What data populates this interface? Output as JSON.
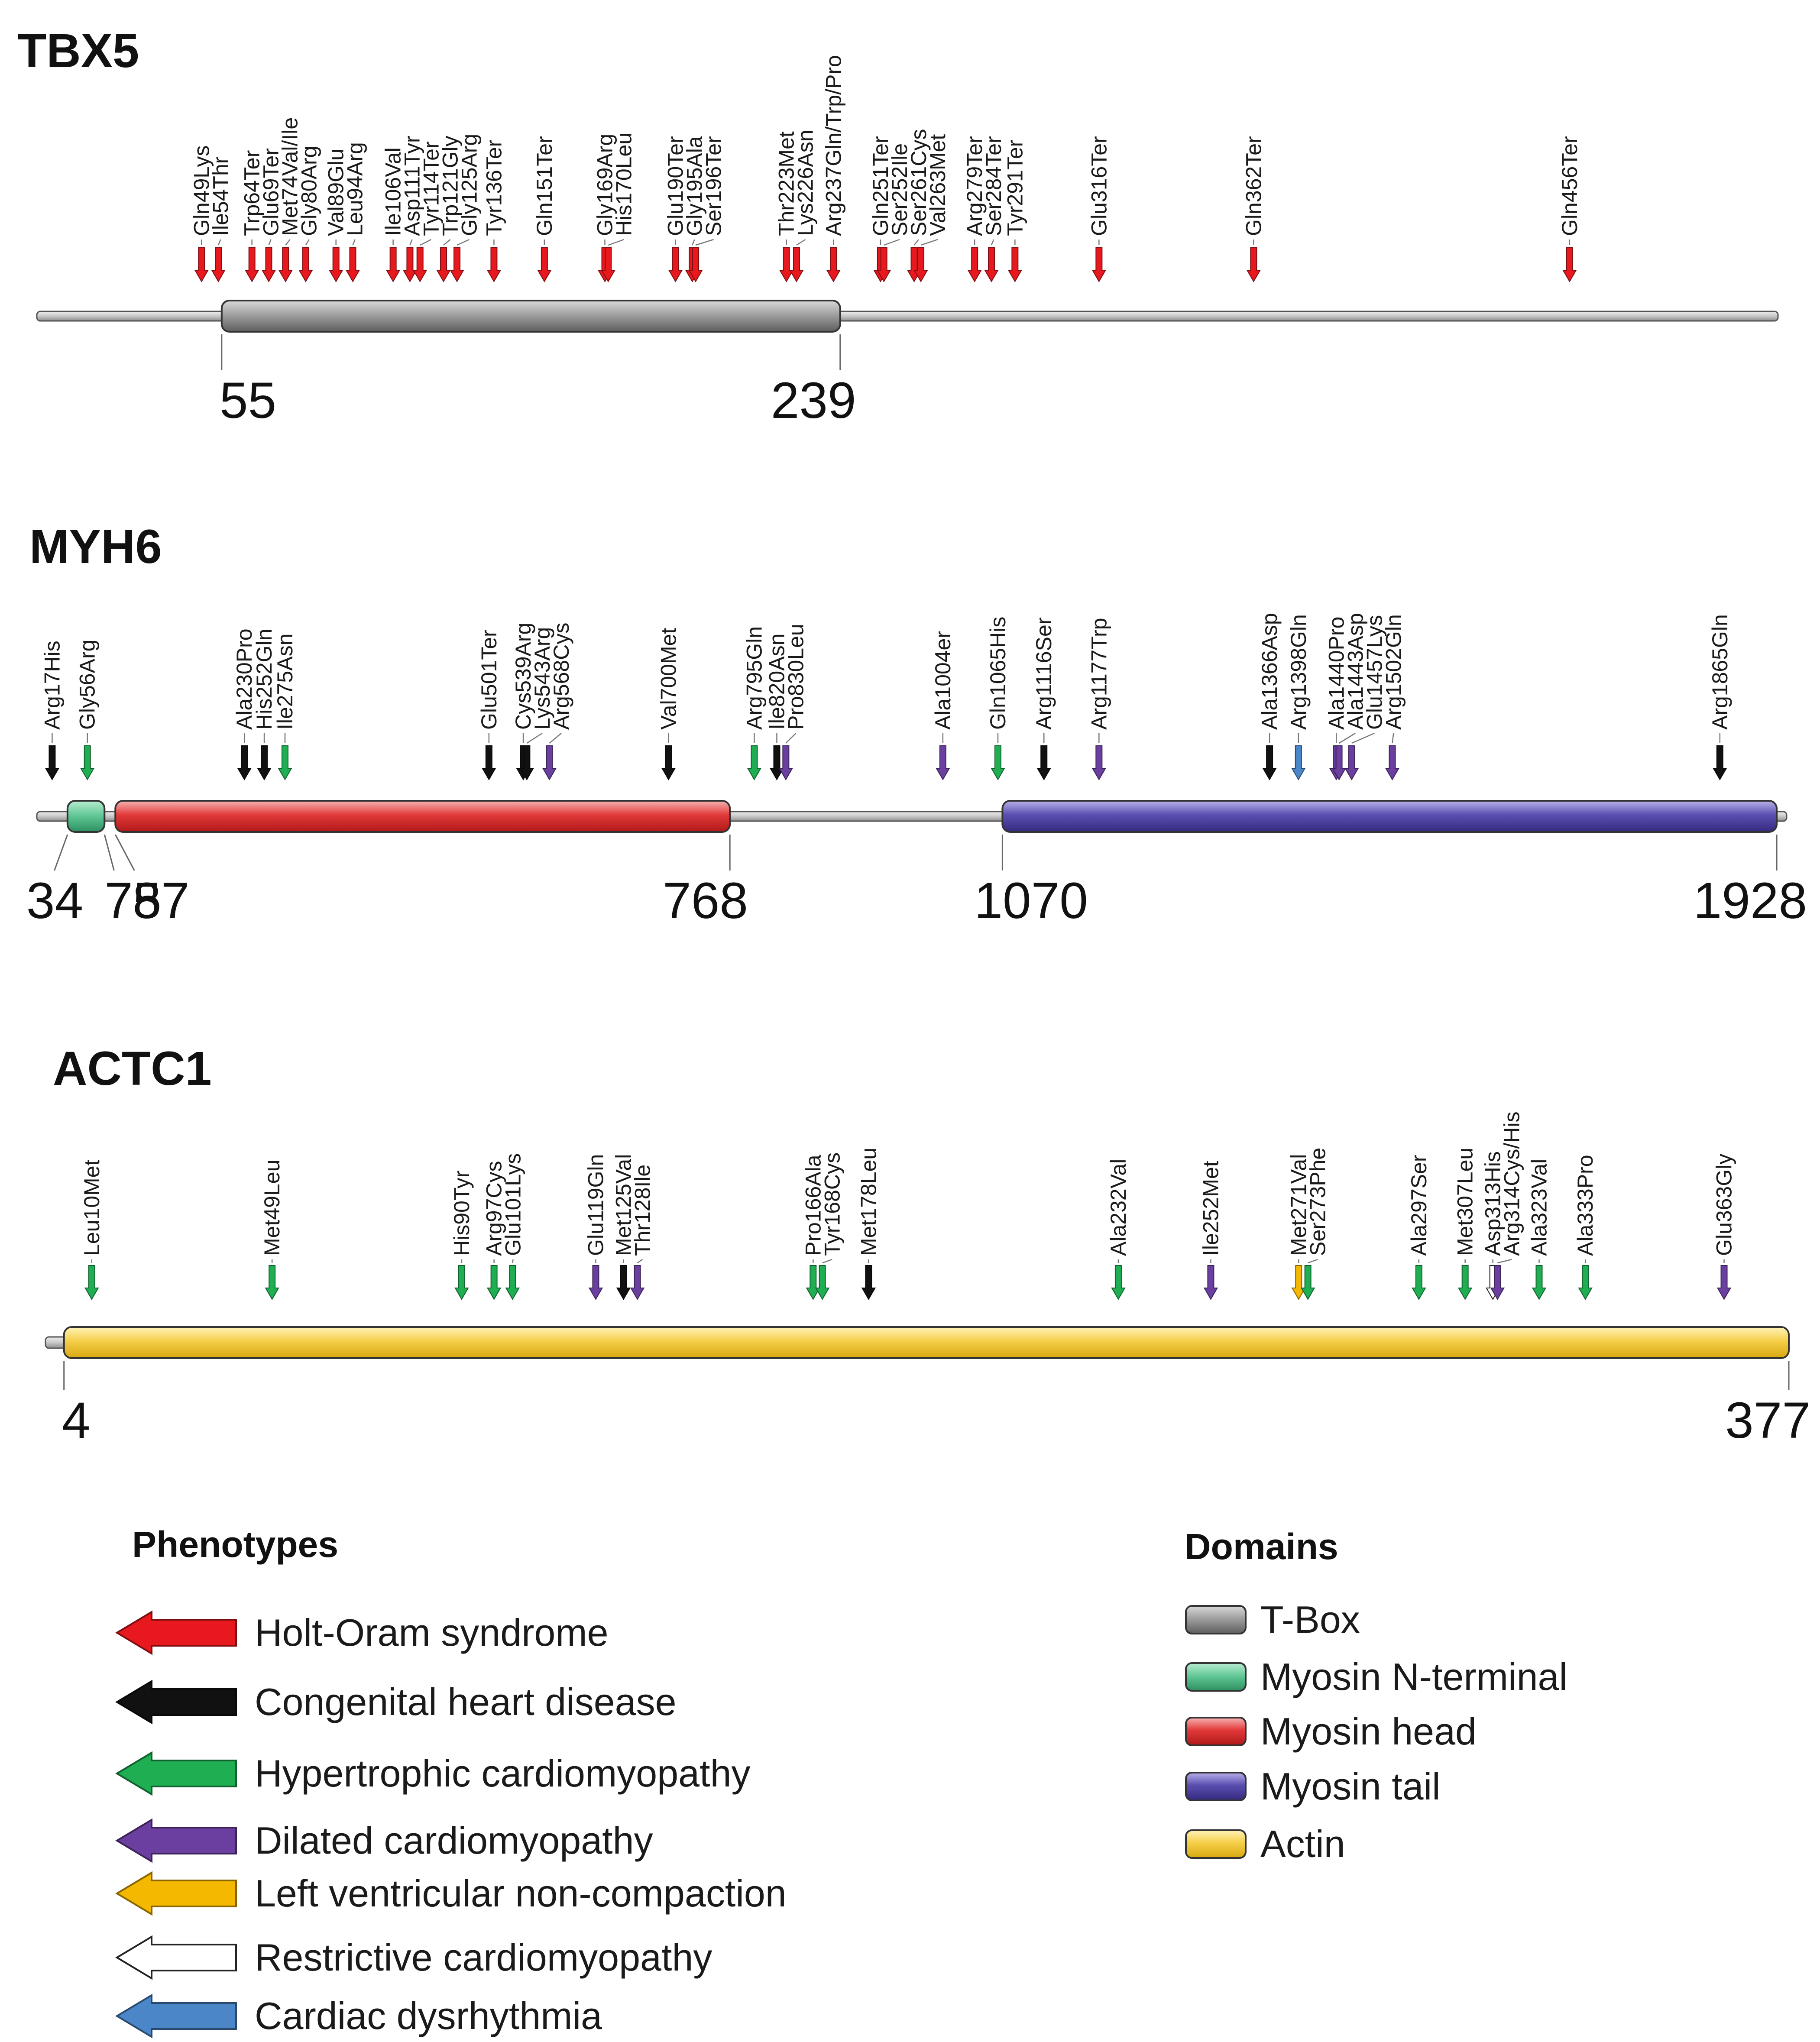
{
  "colors": {
    "holt": "#e8191e",
    "chd": "#111111",
    "hcm": "#1fae52",
    "dcm": "#6b3fa0",
    "lvnc": "#f5b800",
    "rcm": "#ffffff",
    "dys": "#4a86c8",
    "tbox": "#8c8c8c",
    "myo_n": "#5cc592",
    "myo_head": "#e23a3a",
    "myo_tail": "#5a4fb0",
    "actin": "#f5cf4a",
    "backbone": "#c8c8c8"
  },
  "genes": [
    {
      "name": "TBX5",
      "length": 518,
      "domains": [
        {
          "type": "tbox",
          "start": 55,
          "end": 239
        }
      ],
      "positions": [
        55,
        239
      ],
      "mutations": [
        {
          "label": "Gln49Lys",
          "pos": 49,
          "phenotype": "holt"
        },
        {
          "label": "Ile54Thr",
          "pos": 54,
          "phenotype": "holt"
        },
        {
          "label": "Trp64Ter",
          "pos": 64,
          "phenotype": "holt"
        },
        {
          "label": "Glu69Ter",
          "pos": 69,
          "phenotype": "holt"
        },
        {
          "label": "Met74Val/Ile",
          "pos": 74,
          "phenotype": "holt"
        },
        {
          "label": "Gly80Arg",
          "pos": 80,
          "phenotype": "holt"
        },
        {
          "label": "Val89Glu",
          "pos": 89,
          "phenotype": "holt"
        },
        {
          "label": "Leu94Arg",
          "pos": 94,
          "phenotype": "holt"
        },
        {
          "label": "Ile106Val",
          "pos": 106,
          "phenotype": "holt"
        },
        {
          "label": "Asp111Tyr",
          "pos": 111,
          "phenotype": "holt"
        },
        {
          "label": "Tyr114Ter",
          "pos": 114,
          "phenotype": "holt"
        },
        {
          "label": "Trp121Gly",
          "pos": 121,
          "phenotype": "holt"
        },
        {
          "label": "Gly125Arg",
          "pos": 125,
          "phenotype": "holt"
        },
        {
          "label": "Tyr136Ter",
          "pos": 136,
          "phenotype": "holt"
        },
        {
          "label": "Gln151Ter",
          "pos": 151,
          "phenotype": "holt"
        },
        {
          "label": "Gly169Arg",
          "pos": 169,
          "phenotype": "holt"
        },
        {
          "label": "His170Leu",
          "pos": 170,
          "phenotype": "holt"
        },
        {
          "label": "Glu190Ter",
          "pos": 190,
          "phenotype": "holt"
        },
        {
          "label": "Gly195Ala",
          "pos": 195,
          "phenotype": "holt"
        },
        {
          "label": "Ser196Ter",
          "pos": 196,
          "phenotype": "holt"
        },
        {
          "label": "Thr223Met",
          "pos": 223,
          "phenotype": "holt"
        },
        {
          "label": "Lys226Asn",
          "pos": 226,
          "phenotype": "holt"
        },
        {
          "label": "Arg237Gln/Trp/Pro",
          "pos": 237,
          "phenotype": "holt"
        },
        {
          "label": "Gln251Ter",
          "pos": 251,
          "phenotype": "holt"
        },
        {
          "label": "Ser252Ile",
          "pos": 252,
          "phenotype": "holt"
        },
        {
          "label": "Ser261Cys",
          "pos": 261,
          "phenotype": "holt"
        },
        {
          "label": "Val263Met",
          "pos": 263,
          "phenotype": "holt"
        },
        {
          "label": "Arg279Ter",
          "pos": 279,
          "phenotype": "holt"
        },
        {
          "label": "Ser284Ter",
          "pos": 284,
          "phenotype": "holt"
        },
        {
          "label": "Tyr291Ter",
          "pos": 291,
          "phenotype": "holt"
        },
        {
          "label": "Glu316Ter",
          "pos": 316,
          "phenotype": "holt"
        },
        {
          "label": "Gln362Ter",
          "pos": 362,
          "phenotype": "holt"
        },
        {
          "label": "Gln456Ter",
          "pos": 456,
          "phenotype": "holt"
        }
      ]
    },
    {
      "name": "MYH6",
      "length": 1939,
      "domains": [
        {
          "type": "myo_n",
          "start": 34,
          "end": 75
        },
        {
          "type": "myo_head",
          "start": 87,
          "end": 768
        },
        {
          "type": "myo_tail",
          "start": 1070,
          "end": 1928
        }
      ],
      "positions": [
        34,
        75,
        87,
        768,
        1070,
        1928
      ],
      "mutations": [
        {
          "label": "Arg17His",
          "pos": 17,
          "phenotype": "chd"
        },
        {
          "label": "Gly56Arg",
          "pos": 56,
          "phenotype": "hcm"
        },
        {
          "label": "Ala230Pro",
          "pos": 230,
          "phenotype": "chd"
        },
        {
          "label": "His252Gln",
          "pos": 252,
          "phenotype": "chd"
        },
        {
          "label": "Ile275Asn",
          "pos": 275,
          "phenotype": "hcm"
        },
        {
          "label": "Glu501Ter",
          "pos": 501,
          "phenotype": "chd"
        },
        {
          "label": "Cys539Arg",
          "pos": 539,
          "phenotype": "chd"
        },
        {
          "label": "Lys543Arg",
          "pos": 543,
          "phenotype": "chd"
        },
        {
          "label": "Arg568Cys",
          "pos": 568,
          "phenotype": "dcm"
        },
        {
          "label": "Val700Met",
          "pos": 700,
          "phenotype": "chd"
        },
        {
          "label": "Arg795Gln",
          "pos": 795,
          "phenotype": "hcm"
        },
        {
          "label": "Ile820Asn",
          "pos": 820,
          "phenotype": "chd"
        },
        {
          "label": "Pro830Leu",
          "pos": 830,
          "phenotype": "dcm"
        },
        {
          "label": "Ala1004er",
          "pos": 1004,
          "phenotype": "dcm"
        },
        {
          "label": "Gln1065His",
          "pos": 1065,
          "phenotype": "hcm"
        },
        {
          "label": "Arg1116Ser",
          "pos": 1116,
          "phenotype": "chd"
        },
        {
          "label": "Arg1177Trp",
          "pos": 1177,
          "phenotype": "dcm"
        },
        {
          "label": "Ala1366Asp",
          "pos": 1366,
          "phenotype": "chd"
        },
        {
          "label": "Arg1398Gln",
          "pos": 1398,
          "phenotype": "dys"
        },
        {
          "label": "Ala1440Pro",
          "pos": 1440,
          "phenotype": "dcm"
        },
        {
          "label": "Ala1443Asp",
          "pos": 1443,
          "phenotype": "dcm"
        },
        {
          "label": "Glu1457Lys",
          "pos": 1457,
          "phenotype": "dcm"
        },
        {
          "label": "Arg1502Gln",
          "pos": 1502,
          "phenotype": "dcm"
        },
        {
          "label": "Arg1865Gln",
          "pos": 1865,
          "phenotype": "chd"
        }
      ]
    },
    {
      "name": "ACTC1",
      "length": 377,
      "domains": [
        {
          "type": "actin",
          "start": 4,
          "end": 377
        }
      ],
      "positions": [
        4,
        377
      ],
      "mutations": [
        {
          "label": "Leu10Met",
          "pos": 10,
          "phenotype": "hcm"
        },
        {
          "label": "Met49Leu",
          "pos": 49,
          "phenotype": "hcm"
        },
        {
          "label": "His90Tyr",
          "pos": 90,
          "phenotype": "hcm"
        },
        {
          "label": "Arg97Cys",
          "pos": 97,
          "phenotype": "hcm"
        },
        {
          "label": "Glu101Lys",
          "pos": 101,
          "phenotype": "hcm"
        },
        {
          "label": "Glu119Gln",
          "pos": 119,
          "phenotype": "dcm"
        },
        {
          "label": "Met125Val",
          "pos": 125,
          "phenotype": "chd"
        },
        {
          "label": "Thr128Ile",
          "pos": 128,
          "phenotype": "dcm"
        },
        {
          "label": "Pro166Ala",
          "pos": 166,
          "phenotype": "hcm"
        },
        {
          "label": "Tyr168Cys",
          "pos": 168,
          "phenotype": "hcm"
        },
        {
          "label": "Met178Leu",
          "pos": 178,
          "phenotype": "chd"
        },
        {
          "label": "Ala232Val",
          "pos": 232,
          "phenotype": "hcm"
        },
        {
          "label": "Ile252Met",
          "pos": 252,
          "phenotype": "dcm"
        },
        {
          "label": "Met271Val",
          "pos": 271,
          "phenotype": "lvnc"
        },
        {
          "label": "Ser273Phe",
          "pos": 273,
          "phenotype": "hcm"
        },
        {
          "label": "Ala297Ser",
          "pos": 297,
          "phenotype": "hcm"
        },
        {
          "label": "Met307Leu",
          "pos": 307,
          "phenotype": "hcm"
        },
        {
          "label": "Asp313His",
          "pos": 313,
          "phenotype": "rcm"
        },
        {
          "label": "Arg314Cys/His",
          "pos": 314,
          "phenotype": "dcm"
        },
        {
          "label": "Ala323Val",
          "pos": 323,
          "phenotype": "hcm"
        },
        {
          "label": "Ala333Pro",
          "pos": 333,
          "phenotype": "hcm"
        },
        {
          "label": "Glu363Gly",
          "pos": 363,
          "phenotype": "dcm"
        }
      ]
    }
  ],
  "legend": {
    "phenotypes_title": "Phenotypes",
    "phenotypes": [
      {
        "key": "holt",
        "label": "Holt-Oram syndrome"
      },
      {
        "key": "chd",
        "label": "Congenital heart disease"
      },
      {
        "key": "hcm",
        "label": "Hypertrophic cardiomyopathy"
      },
      {
        "key": "dcm",
        "label": "Dilated cardiomyopathy"
      },
      {
        "key": "lvnc",
        "label": "Left ventricular non-compaction"
      },
      {
        "key": "rcm",
        "label": "Restrictive cardiomyopathy"
      },
      {
        "key": "dys",
        "label": "Cardiac dysrhythmia"
      }
    ],
    "domains_title": "Domains",
    "domains": [
      {
        "key": "tbox",
        "label": "T-Box"
      },
      {
        "key": "myo_n",
        "label": "Myosin N-terminal"
      },
      {
        "key": "myo_head",
        "label": "Myosin head"
      },
      {
        "key": "myo_tail",
        "label": "Myosin tail"
      },
      {
        "key": "actin",
        "label": "Actin"
      }
    ]
  }
}
